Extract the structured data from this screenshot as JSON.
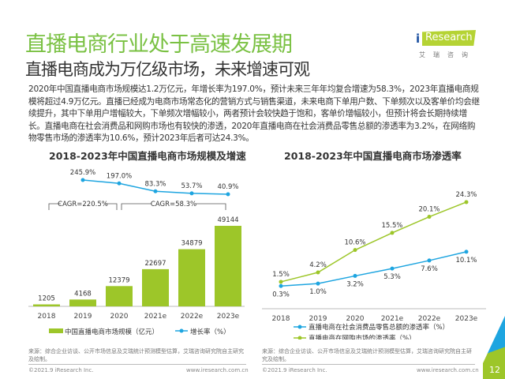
{
  "header": {
    "title": "直播电商行业处于高速发展期",
    "subtitle": "直播电商成为万亿级市场，未来增速可观",
    "logo_text": "iResearch",
    "logo_cn": "艾瑞咨询"
  },
  "body_text": "2020年中国直播电商市场规模达1.2万亿元，年增长率为197.0%，预计未来三年年均复合增速为58.3%，2023年直播电商规模将超过4.9万亿元。直播已经成为电商市场常态化的营销方式与销售渠道，未来电商下单用户数、下单频次以及客单价均会继续提升，其中下单用户增幅较大，下单频次增幅较小，两者预计会较快趋于饱和，客单价增幅较小，但预计将会长期持续增长。直播电商在社会消费品和网购市场也有较快的渗透，2020年直播电商在社会消费品零售总额的渗透率为3.2%，在网络购物零售市场的渗透率为10.6%，预计2023年后者可达24.3%。",
  "chart_data": [
    {
      "type": "bar+line",
      "title": "2018-2023年中国直播电商市场规模及增速",
      "categories": [
        "2018",
        "2019",
        "2020",
        "2021e",
        "2022e",
        "2023e"
      ],
      "series": [
        {
          "name": "中国直播电商市场规模（亿元）",
          "type": "bar",
          "color": "#9dc629",
          "values": [
            1205,
            4168,
            12379,
            22697,
            34879,
            49144
          ]
        },
        {
          "name": "增长率（%）",
          "type": "line",
          "color": "#1ea5e0",
          "values": [
            null,
            245.9,
            197.0,
            83.3,
            53.7,
            40.9
          ],
          "labels": [
            "",
            "245.9%",
            "197.0%",
            "83.3%",
            "53.7%",
            "40.9%"
          ]
        }
      ],
      "annotations": [
        "CAGR=220.5%",
        "CAGR=58.3%"
      ]
    },
    {
      "type": "line",
      "title": "2018-2023年中国直播电商市场渗透率",
      "categories": [
        "2018",
        "2019",
        "2020",
        "2021e",
        "2022e",
        "2023e"
      ],
      "series": [
        {
          "name": "直播电商在社会消费品零售总额的渗透率（%）",
          "color": "#1ea5e0",
          "values": [
            0.3,
            1.0,
            3.2,
            5.3,
            7.6,
            10.1
          ],
          "labels": [
            "0.3%",
            "1.0%",
            "3.2%",
            "5.3%",
            "7.6%",
            "10.1%"
          ]
        },
        {
          "name": "直播电商在网购市场的渗透率（%）",
          "color": "#9dc629",
          "values": [
            1.5,
            4.2,
            10.6,
            15.5,
            20.1,
            24.3
          ],
          "labels": [
            "1.5%",
            "4.2%",
            "10.6%",
            "15.5%",
            "20.1%",
            "24.3%"
          ]
        }
      ]
    }
  ],
  "source": "来源：综合企业访谈、公开市场信息及艾瑞统计预测模型估算，艾瑞咨询研究院自主研究及绘制。",
  "footer": {
    "copyright": "©2021.9 iResearch Inc.",
    "url": "www.iresearch.com.cn",
    "page": "12"
  }
}
